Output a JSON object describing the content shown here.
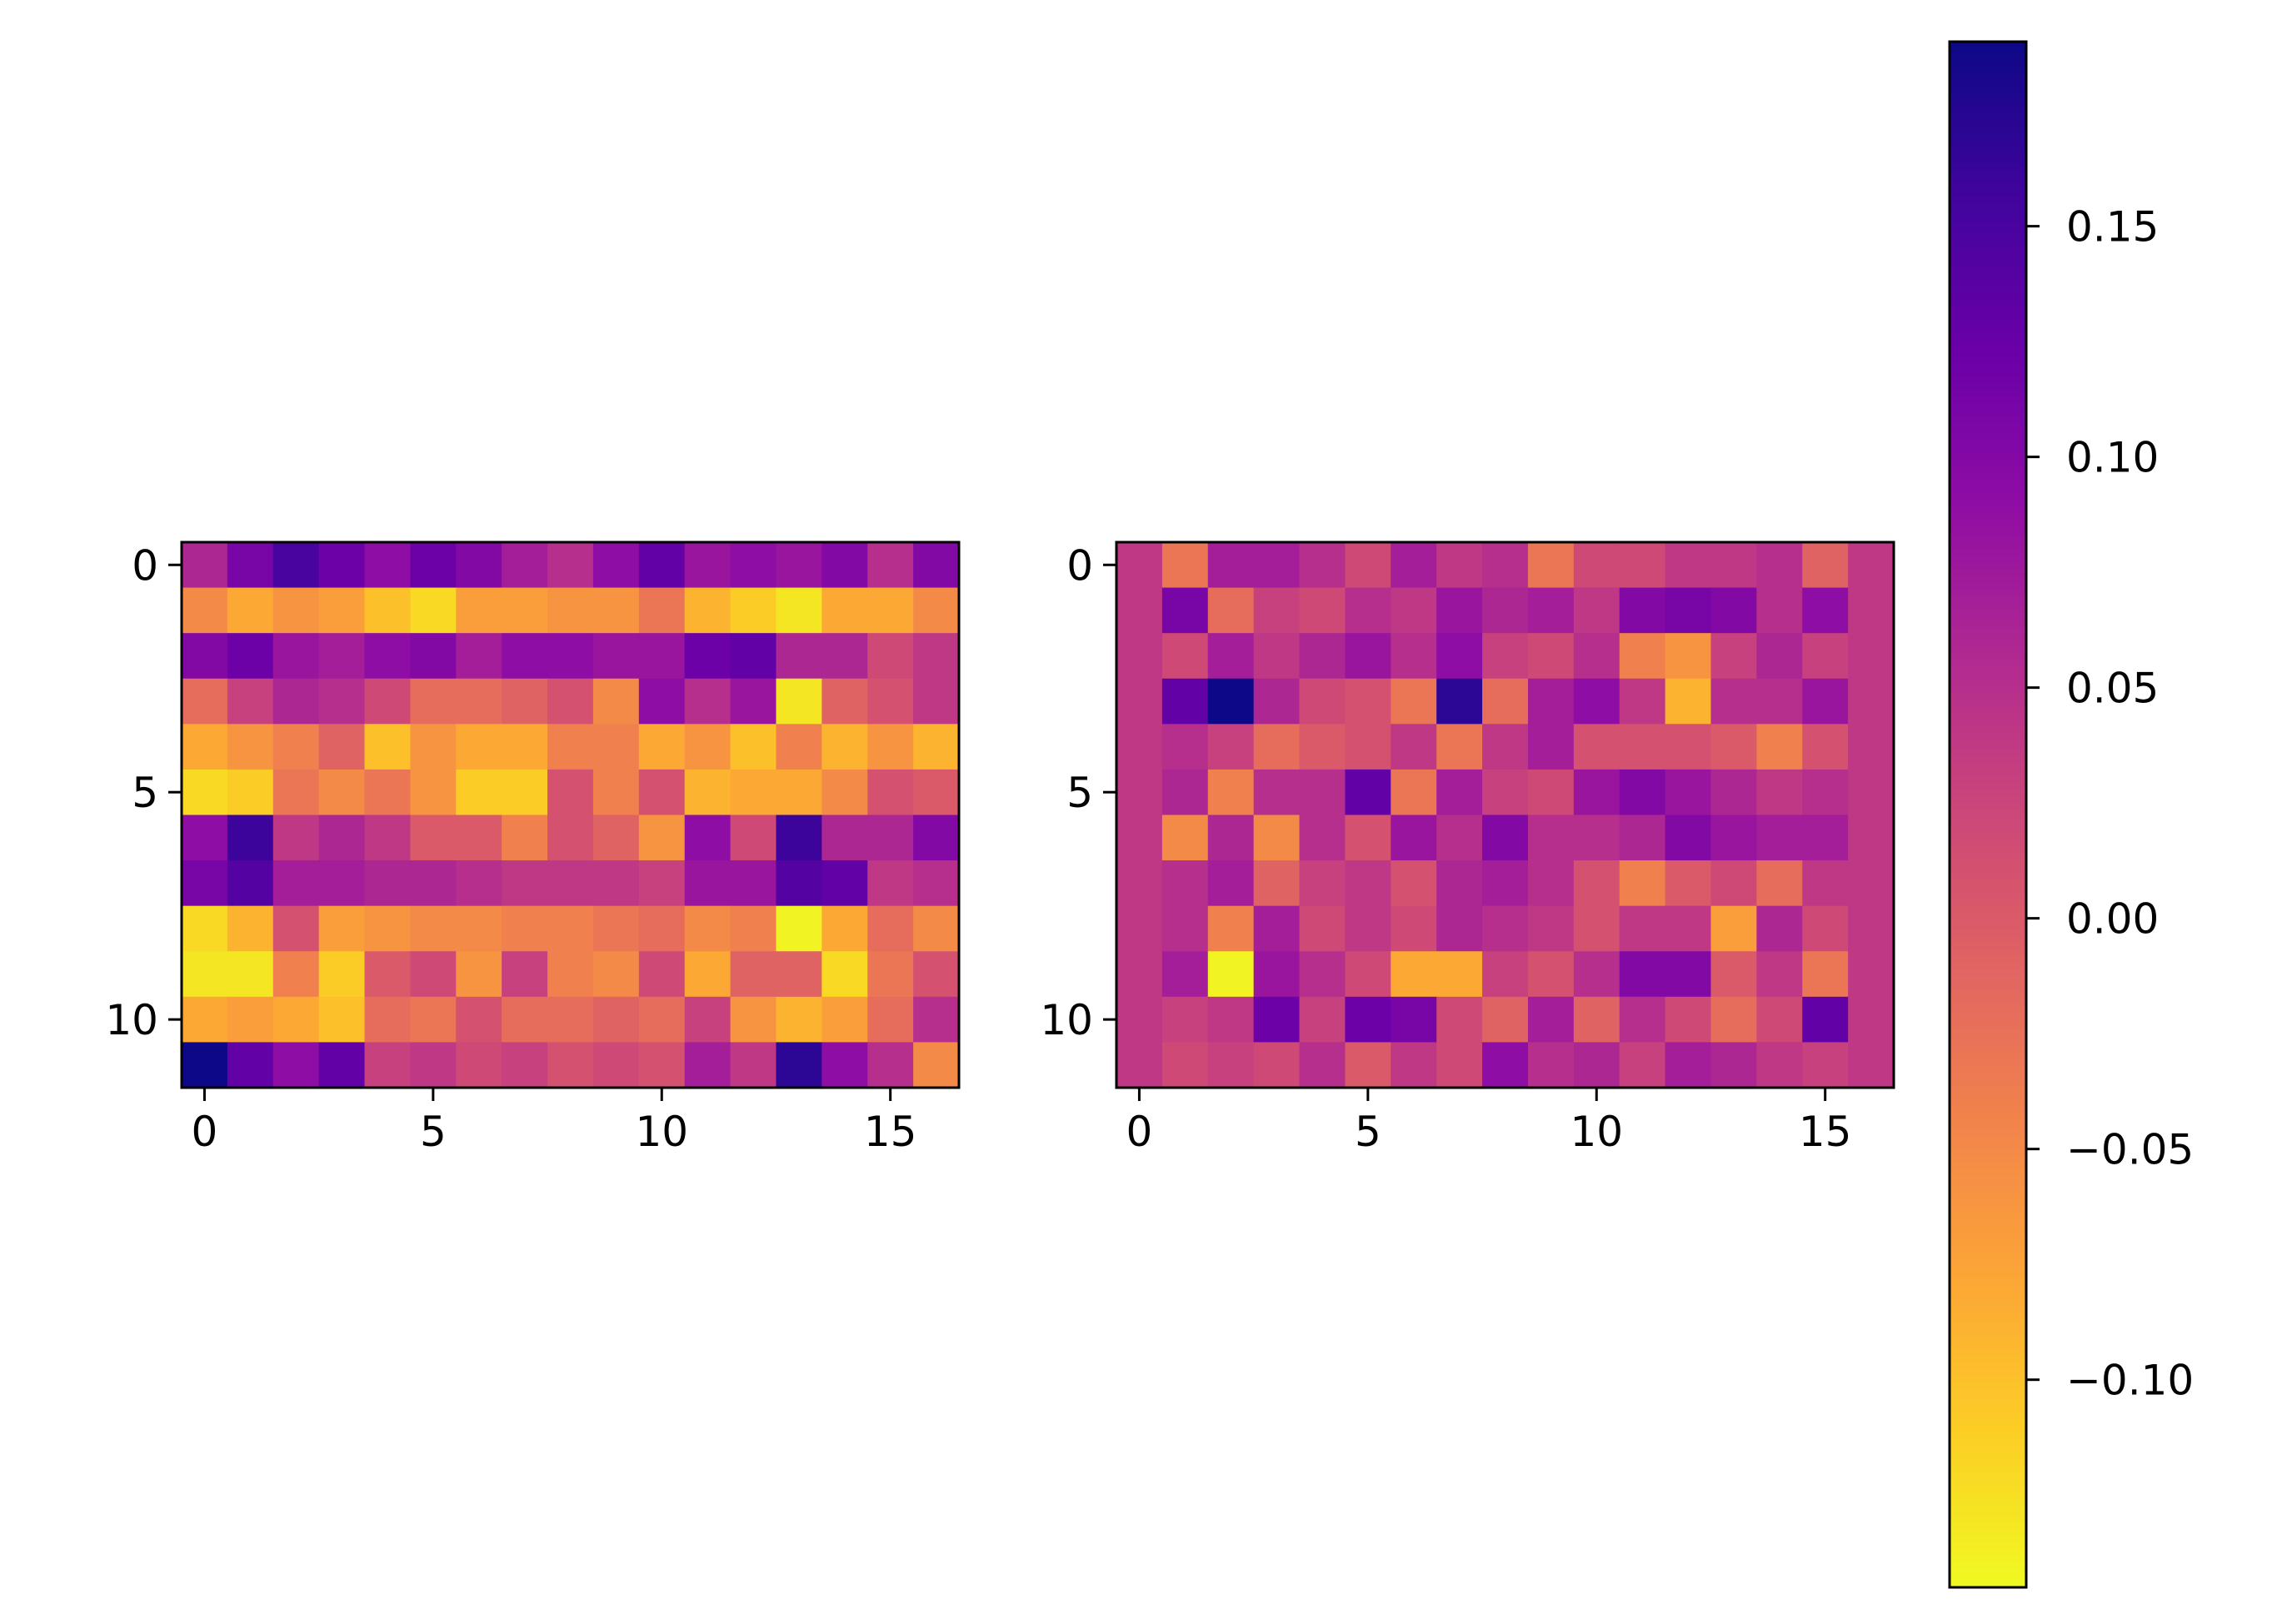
{
  "chart_data": [
    {
      "type": "heatmap",
      "title": "",
      "xlabel": "",
      "ylabel": "",
      "colormap": "plasma_r",
      "rows": 12,
      "cols": 17,
      "x_ticks": [
        0,
        5,
        10,
        15
      ],
      "y_ticks": [
        0,
        5,
        10
      ],
      "xlim": [
        -0.5,
        16.5
      ],
      "ylim": [
        11.5,
        -0.5
      ],
      "values": [
        [
          0.06,
          0.11,
          0.15,
          0.12,
          0.09,
          0.12,
          0.1,
          0.07,
          0.05,
          0.09,
          0.13,
          0.08,
          0.09,
          0.08,
          0.1,
          0.05,
          0.1
        ],
        [
          -0.05,
          -0.08,
          -0.06,
          -0.07,
          -0.1,
          -0.12,
          -0.07,
          -0.07,
          -0.06,
          -0.06,
          -0.03,
          -0.09,
          -0.11,
          -0.13,
          -0.08,
          -0.08,
          -0.05
        ],
        [
          0.1,
          0.12,
          0.08,
          0.07,
          0.09,
          0.1,
          0.07,
          0.09,
          0.09,
          0.08,
          0.08,
          0.12,
          0.13,
          0.06,
          0.06,
          0.02,
          0.04
        ],
        [
          -0.02,
          0.03,
          0.06,
          0.05,
          0.02,
          -0.02,
          -0.02,
          -0.01,
          0.01,
          -0.05,
          0.09,
          0.05,
          0.08,
          -0.13,
          -0.01,
          0.01,
          0.04
        ],
        [
          -0.08,
          -0.06,
          -0.04,
          -0.01,
          -0.1,
          -0.06,
          -0.08,
          -0.08,
          -0.04,
          -0.04,
          -0.08,
          -0.06,
          -0.1,
          -0.04,
          -0.09,
          -0.06,
          -0.09
        ],
        [
          -0.12,
          -0.11,
          -0.03,
          -0.05,
          -0.03,
          -0.06,
          -0.11,
          -0.11,
          0.01,
          -0.04,
          0.01,
          -0.09,
          -0.08,
          -0.08,
          -0.05,
          0.01,
          0.0
        ],
        [
          0.09,
          0.16,
          0.04,
          0.06,
          0.04,
          0.0,
          0.0,
          -0.04,
          0.01,
          -0.01,
          -0.06,
          0.09,
          0.02,
          0.16,
          0.06,
          0.06,
          0.1
        ],
        [
          0.11,
          0.14,
          0.07,
          0.07,
          0.06,
          0.06,
          0.05,
          0.04,
          0.04,
          0.04,
          0.03,
          0.08,
          0.08,
          0.14,
          0.13,
          0.04,
          0.05
        ],
        [
          -0.12,
          -0.09,
          0.01,
          -0.07,
          -0.06,
          -0.05,
          -0.05,
          -0.04,
          -0.04,
          -0.03,
          -0.02,
          -0.05,
          -0.04,
          -0.14,
          -0.08,
          -0.02,
          -0.05
        ],
        [
          -0.13,
          -0.13,
          -0.04,
          -0.11,
          0.0,
          0.02,
          -0.06,
          0.03,
          -0.04,
          -0.05,
          0.02,
          -0.08,
          -0.01,
          -0.01,
          -0.12,
          -0.03,
          0.01
        ],
        [
          -0.08,
          -0.07,
          -0.08,
          -0.1,
          -0.02,
          -0.03,
          0.01,
          -0.02,
          -0.02,
          -0.01,
          -0.02,
          0.03,
          -0.06,
          -0.09,
          -0.07,
          -0.02,
          0.05
        ],
        [
          0.19,
          0.13,
          0.09,
          0.13,
          0.03,
          0.04,
          0.02,
          0.03,
          0.01,
          0.02,
          0.01,
          0.07,
          0.04,
          0.17,
          0.09,
          0.05,
          -0.05
        ]
      ]
    },
    {
      "type": "heatmap",
      "title": "",
      "xlabel": "",
      "ylabel": "",
      "colormap": "plasma_r",
      "rows": 12,
      "cols": 17,
      "x_ticks": [
        0,
        5,
        10,
        15
      ],
      "y_ticks": [
        0,
        5,
        10
      ],
      "xlim": [
        -0.5,
        16.5
      ],
      "ylim": [
        11.5,
        -0.5
      ],
      "values": [
        [
          0.04,
          -0.03,
          0.07,
          0.07,
          0.05,
          0.02,
          0.07,
          0.04,
          0.05,
          -0.03,
          0.02,
          0.02,
          0.04,
          0.04,
          0.05,
          -0.01,
          0.04
        ],
        [
          0.04,
          0.11,
          -0.02,
          0.03,
          0.02,
          0.05,
          0.04,
          0.08,
          0.06,
          0.07,
          0.04,
          0.1,
          0.11,
          0.1,
          0.05,
          0.09,
          0.04
        ],
        [
          0.04,
          0.02,
          0.07,
          0.04,
          0.06,
          0.08,
          0.05,
          0.09,
          0.03,
          0.02,
          0.05,
          -0.04,
          -0.06,
          0.03,
          0.06,
          0.03,
          0.04
        ],
        [
          0.04,
          0.13,
          0.19,
          0.06,
          0.02,
          0.01,
          -0.03,
          0.17,
          -0.02,
          0.07,
          0.09,
          0.04,
          -0.09,
          0.05,
          0.05,
          0.08,
          0.04
        ],
        [
          0.04,
          0.05,
          0.03,
          -0.02,
          0.0,
          0.01,
          0.04,
          -0.03,
          0.04,
          0.07,
          0.01,
          0.01,
          0.01,
          0.0,
          -0.04,
          0.01,
          0.04
        ],
        [
          0.04,
          0.06,
          -0.04,
          0.05,
          0.05,
          0.13,
          -0.03,
          0.07,
          0.03,
          0.02,
          0.08,
          0.1,
          0.08,
          0.06,
          0.04,
          0.05,
          0.04
        ],
        [
          0.04,
          -0.05,
          0.06,
          -0.05,
          0.05,
          0.01,
          0.08,
          0.05,
          0.1,
          0.05,
          0.05,
          0.06,
          0.1,
          0.08,
          0.07,
          0.07,
          0.04
        ],
        [
          0.04,
          0.05,
          0.07,
          -0.01,
          0.03,
          0.04,
          0.01,
          0.06,
          0.07,
          0.05,
          0.01,
          -0.04,
          0.0,
          0.02,
          -0.02,
          0.04,
          0.04
        ],
        [
          0.04,
          0.05,
          -0.04,
          0.07,
          0.02,
          0.04,
          0.02,
          0.06,
          0.05,
          0.04,
          0.01,
          0.04,
          0.04,
          -0.07,
          0.06,
          0.02,
          0.04
        ],
        [
          0.04,
          0.07,
          -0.14,
          0.08,
          0.05,
          0.02,
          -0.08,
          -0.08,
          0.03,
          0.01,
          0.05,
          0.1,
          0.1,
          0.0,
          0.04,
          -0.03,
          0.04
        ],
        [
          0.04,
          0.03,
          0.04,
          0.12,
          0.03,
          0.12,
          0.11,
          0.02,
          -0.01,
          0.07,
          -0.01,
          0.05,
          0.02,
          -0.02,
          0.02,
          0.13,
          0.04
        ],
        [
          0.04,
          0.02,
          0.03,
          0.02,
          0.05,
          0.0,
          0.04,
          0.02,
          0.09,
          0.05,
          0.06,
          0.03,
          0.07,
          0.06,
          0.04,
          0.03,
          0.04
        ]
      ]
    }
  ],
  "colorbar": {
    "vmin": -0.145,
    "vmax": 0.19,
    "ticks": [
      -0.1,
      -0.05,
      0.0,
      0.05,
      0.1,
      0.15
    ],
    "tick_labels": [
      "−0.10",
      "−0.05",
      "0.00",
      "0.05",
      "0.10",
      "0.15"
    ]
  }
}
